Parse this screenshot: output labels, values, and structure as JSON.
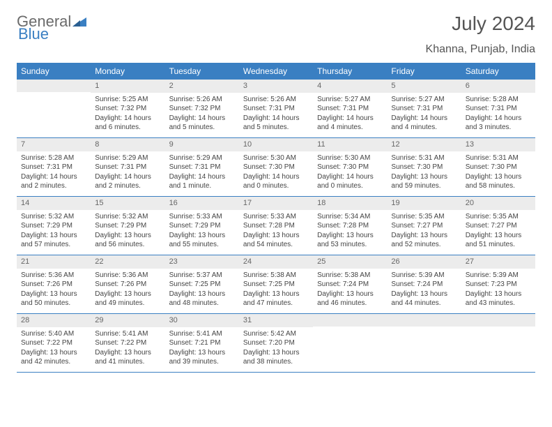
{
  "logo": {
    "part1": "General",
    "part2": "Blue"
  },
  "title": "July 2024",
  "location": "Khanna, Punjab, India",
  "weekdays": [
    "Sunday",
    "Monday",
    "Tuesday",
    "Wednesday",
    "Thursday",
    "Friday",
    "Saturday"
  ],
  "colors": {
    "header_bg": "#3a7fc2",
    "header_text": "#ffffff",
    "daynum_bg": "#ececec",
    "border": "#3a7fc2",
    "text": "#444444",
    "title_text": "#555555",
    "logo_gray": "#6b6b6b",
    "logo_blue": "#3a7fc2"
  },
  "first_weekday_index": 1,
  "days": [
    {
      "n": 1,
      "sunrise": "5:25 AM",
      "sunset": "7:32 PM",
      "daylight": "14 hours and 6 minutes."
    },
    {
      "n": 2,
      "sunrise": "5:26 AM",
      "sunset": "7:32 PM",
      "daylight": "14 hours and 5 minutes."
    },
    {
      "n": 3,
      "sunrise": "5:26 AM",
      "sunset": "7:31 PM",
      "daylight": "14 hours and 5 minutes."
    },
    {
      "n": 4,
      "sunrise": "5:27 AM",
      "sunset": "7:31 PM",
      "daylight": "14 hours and 4 minutes."
    },
    {
      "n": 5,
      "sunrise": "5:27 AM",
      "sunset": "7:31 PM",
      "daylight": "14 hours and 4 minutes."
    },
    {
      "n": 6,
      "sunrise": "5:28 AM",
      "sunset": "7:31 PM",
      "daylight": "14 hours and 3 minutes."
    },
    {
      "n": 7,
      "sunrise": "5:28 AM",
      "sunset": "7:31 PM",
      "daylight": "14 hours and 2 minutes."
    },
    {
      "n": 8,
      "sunrise": "5:29 AM",
      "sunset": "7:31 PM",
      "daylight": "14 hours and 2 minutes."
    },
    {
      "n": 9,
      "sunrise": "5:29 AM",
      "sunset": "7:31 PM",
      "daylight": "14 hours and 1 minute."
    },
    {
      "n": 10,
      "sunrise": "5:30 AM",
      "sunset": "7:30 PM",
      "daylight": "14 hours and 0 minutes."
    },
    {
      "n": 11,
      "sunrise": "5:30 AM",
      "sunset": "7:30 PM",
      "daylight": "14 hours and 0 minutes."
    },
    {
      "n": 12,
      "sunrise": "5:31 AM",
      "sunset": "7:30 PM",
      "daylight": "13 hours and 59 minutes."
    },
    {
      "n": 13,
      "sunrise": "5:31 AM",
      "sunset": "7:30 PM",
      "daylight": "13 hours and 58 minutes."
    },
    {
      "n": 14,
      "sunrise": "5:32 AM",
      "sunset": "7:29 PM",
      "daylight": "13 hours and 57 minutes."
    },
    {
      "n": 15,
      "sunrise": "5:32 AM",
      "sunset": "7:29 PM",
      "daylight": "13 hours and 56 minutes."
    },
    {
      "n": 16,
      "sunrise": "5:33 AM",
      "sunset": "7:29 PM",
      "daylight": "13 hours and 55 minutes."
    },
    {
      "n": 17,
      "sunrise": "5:33 AM",
      "sunset": "7:28 PM",
      "daylight": "13 hours and 54 minutes."
    },
    {
      "n": 18,
      "sunrise": "5:34 AM",
      "sunset": "7:28 PM",
      "daylight": "13 hours and 53 minutes."
    },
    {
      "n": 19,
      "sunrise": "5:35 AM",
      "sunset": "7:27 PM",
      "daylight": "13 hours and 52 minutes."
    },
    {
      "n": 20,
      "sunrise": "5:35 AM",
      "sunset": "7:27 PM",
      "daylight": "13 hours and 51 minutes."
    },
    {
      "n": 21,
      "sunrise": "5:36 AM",
      "sunset": "7:26 PM",
      "daylight": "13 hours and 50 minutes."
    },
    {
      "n": 22,
      "sunrise": "5:36 AM",
      "sunset": "7:26 PM",
      "daylight": "13 hours and 49 minutes."
    },
    {
      "n": 23,
      "sunrise": "5:37 AM",
      "sunset": "7:25 PM",
      "daylight": "13 hours and 48 minutes."
    },
    {
      "n": 24,
      "sunrise": "5:38 AM",
      "sunset": "7:25 PM",
      "daylight": "13 hours and 47 minutes."
    },
    {
      "n": 25,
      "sunrise": "5:38 AM",
      "sunset": "7:24 PM",
      "daylight": "13 hours and 46 minutes."
    },
    {
      "n": 26,
      "sunrise": "5:39 AM",
      "sunset": "7:24 PM",
      "daylight": "13 hours and 44 minutes."
    },
    {
      "n": 27,
      "sunrise": "5:39 AM",
      "sunset": "7:23 PM",
      "daylight": "13 hours and 43 minutes."
    },
    {
      "n": 28,
      "sunrise": "5:40 AM",
      "sunset": "7:22 PM",
      "daylight": "13 hours and 42 minutes."
    },
    {
      "n": 29,
      "sunrise": "5:41 AM",
      "sunset": "7:22 PM",
      "daylight": "13 hours and 41 minutes."
    },
    {
      "n": 30,
      "sunrise": "5:41 AM",
      "sunset": "7:21 PM",
      "daylight": "13 hours and 39 minutes."
    },
    {
      "n": 31,
      "sunrise": "5:42 AM",
      "sunset": "7:20 PM",
      "daylight": "13 hours and 38 minutes."
    }
  ],
  "labels": {
    "sunrise": "Sunrise:",
    "sunset": "Sunset:",
    "daylight": "Daylight:"
  }
}
